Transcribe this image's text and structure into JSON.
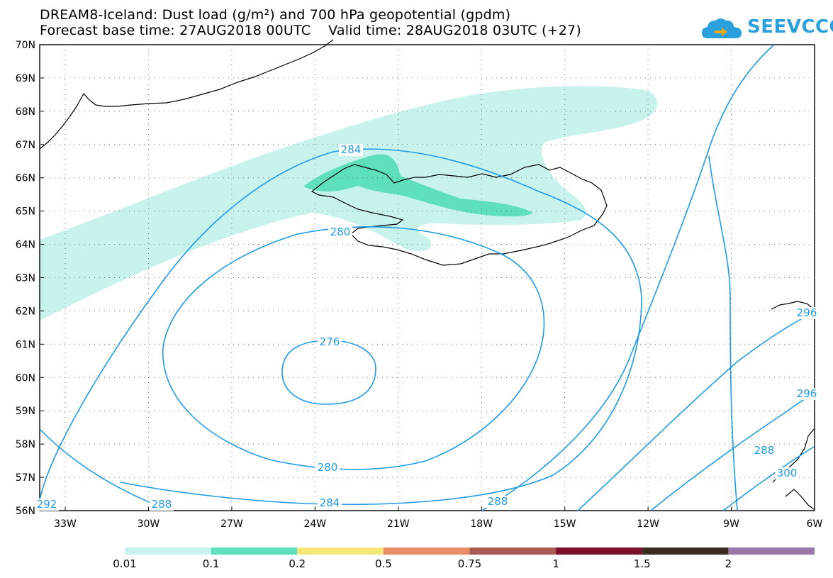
{
  "header": {
    "title_line1": "DREAM8-Iceland: Dust load (g/m²) and 700 hPa geopotential (gpdm)",
    "title_line2": "Forecast base time: 27AUG2018 00UTC    Valid time: 28AUG2018 03UTC (+27)",
    "logo_text": "SEEVCCC"
  },
  "map": {
    "lat_labels": [
      "70N",
      "69N",
      "68N",
      "67N",
      "66N",
      "65N",
      "64N",
      "63N",
      "62N",
      "61N",
      "60N",
      "59N",
      "58N",
      "57N",
      "56N"
    ],
    "lon_labels": [
      "33W",
      "30W",
      "27W",
      "24W",
      "21W",
      "18W",
      "15W",
      "12W",
      "9W",
      "6W"
    ],
    "contour_labels": [
      "284",
      "280",
      "276",
      "280",
      "284",
      "288",
      "288",
      "292",
      "296",
      "296",
      "300",
      "288"
    ],
    "line_color": "#1e9bea",
    "dust_colors": {
      "low": "#c8f2ec",
      "mid": "#5ee0bd"
    }
  },
  "legend": {
    "labels": [
      "0.01",
      "0.1",
      "0.2",
      "0.5",
      "0.75",
      "1",
      "1.5",
      "2"
    ],
    "colors": [
      "#c8f2ec",
      "#5ee0bd",
      "#f7e77b",
      "#e88d6a",
      "#a85a52",
      "#7c0e2e",
      "#3b2a20",
      "#9976a8"
    ]
  }
}
